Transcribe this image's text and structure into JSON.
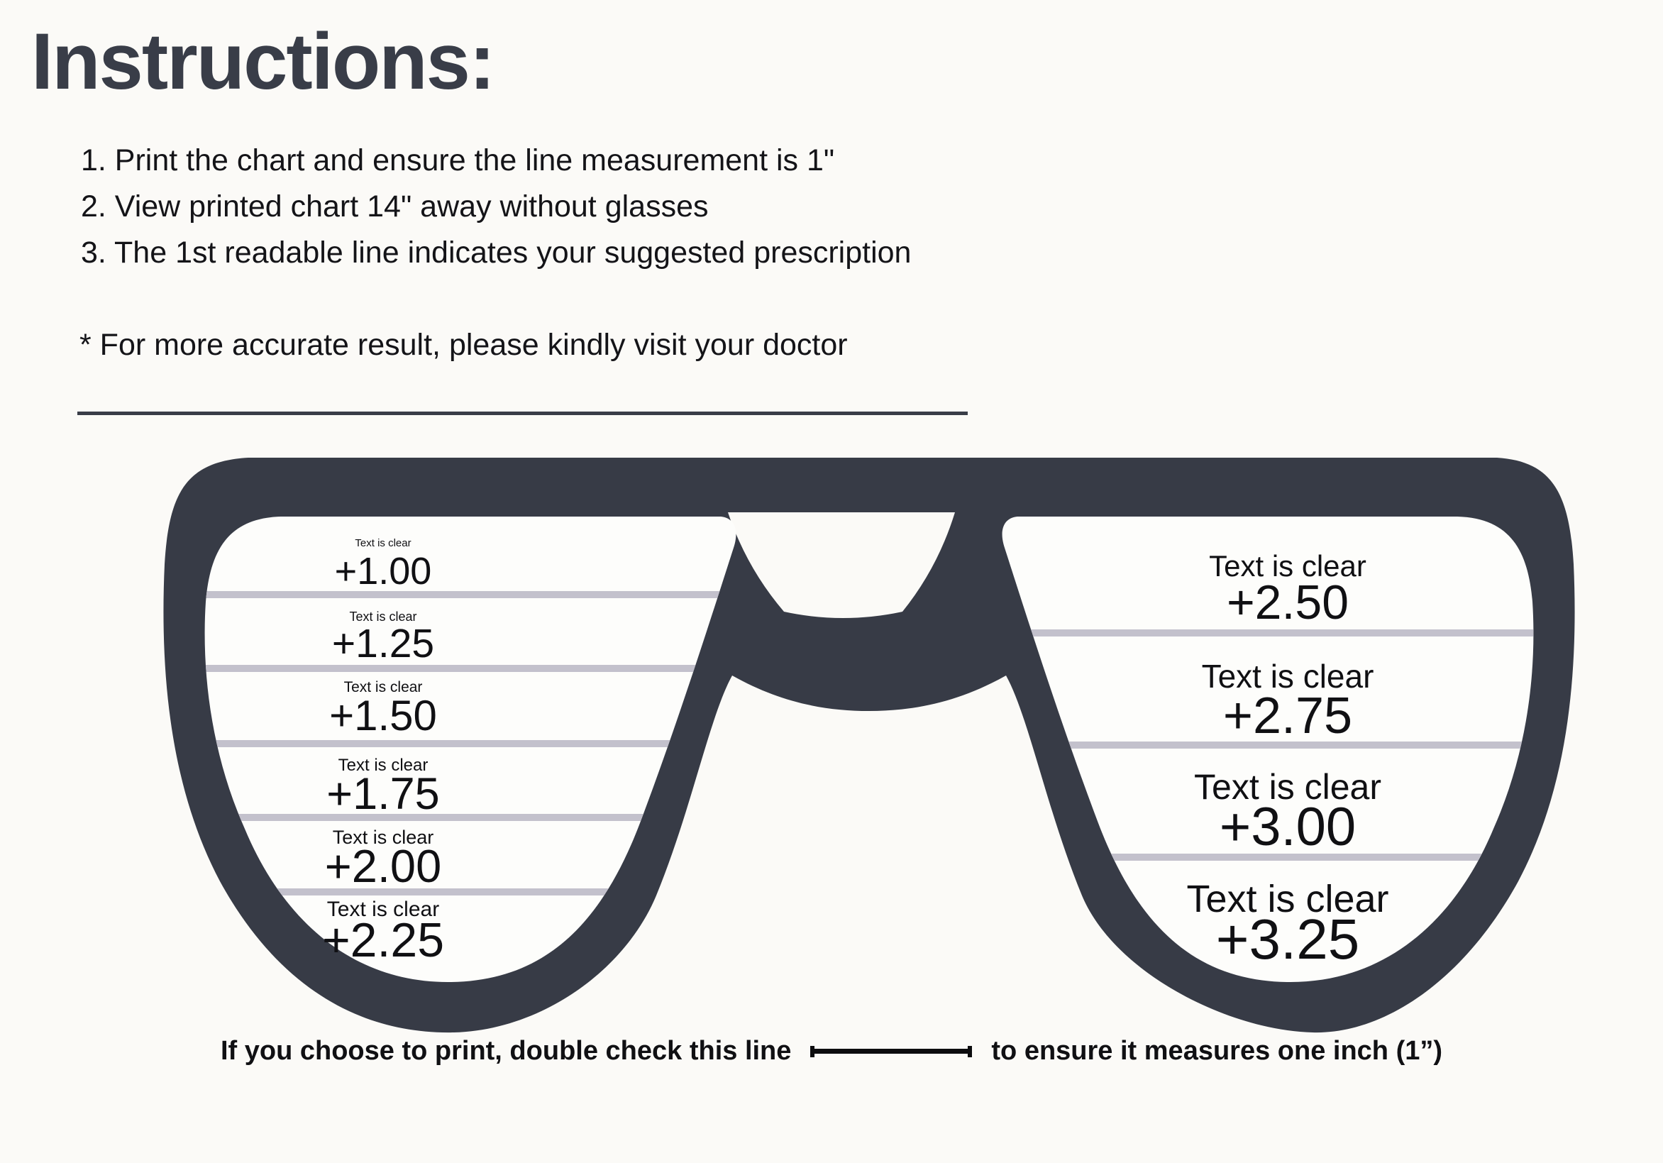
{
  "title": "Instructions:",
  "instructions": [
    "1. Print the chart and ensure the line measurement is 1\"",
    "2. View printed chart 14\" away without glasses",
    "3. The 1st readable line indicates your suggested prescription"
  ],
  "note": "* For more accurate result, please kindly visit your doctor",
  "colors": {
    "background": "#fbfaf7",
    "frame": "#373b46",
    "lens_fill": "#fdfdfb",
    "divider_line": "#c3c1cc",
    "text": "#141418",
    "title": "#393d48"
  },
  "chart": {
    "left_lens_rows": [
      {
        "label": "Text is clear",
        "value": "+1.00"
      },
      {
        "label": "Text is clear",
        "value": "+1.25"
      },
      {
        "label": "Text is clear",
        "value": "+1.50"
      },
      {
        "label": "Text is clear",
        "value": "+1.75"
      },
      {
        "label": "Text is clear",
        "value": "+2.00"
      },
      {
        "label": "Text is clear",
        "value": "+2.25"
      }
    ],
    "right_lens_rows": [
      {
        "label": "Text is clear",
        "value": "+2.50"
      },
      {
        "label": "Text is clear",
        "value": "+2.75"
      },
      {
        "label": "Text is clear",
        "value": "+3.00"
      },
      {
        "label": "Text is clear",
        "value": "+3.25"
      }
    ]
  },
  "footer": {
    "before_line": "If you choose to print, double check this line",
    "after_line": "to ensure it measures one inch (1”)"
  }
}
